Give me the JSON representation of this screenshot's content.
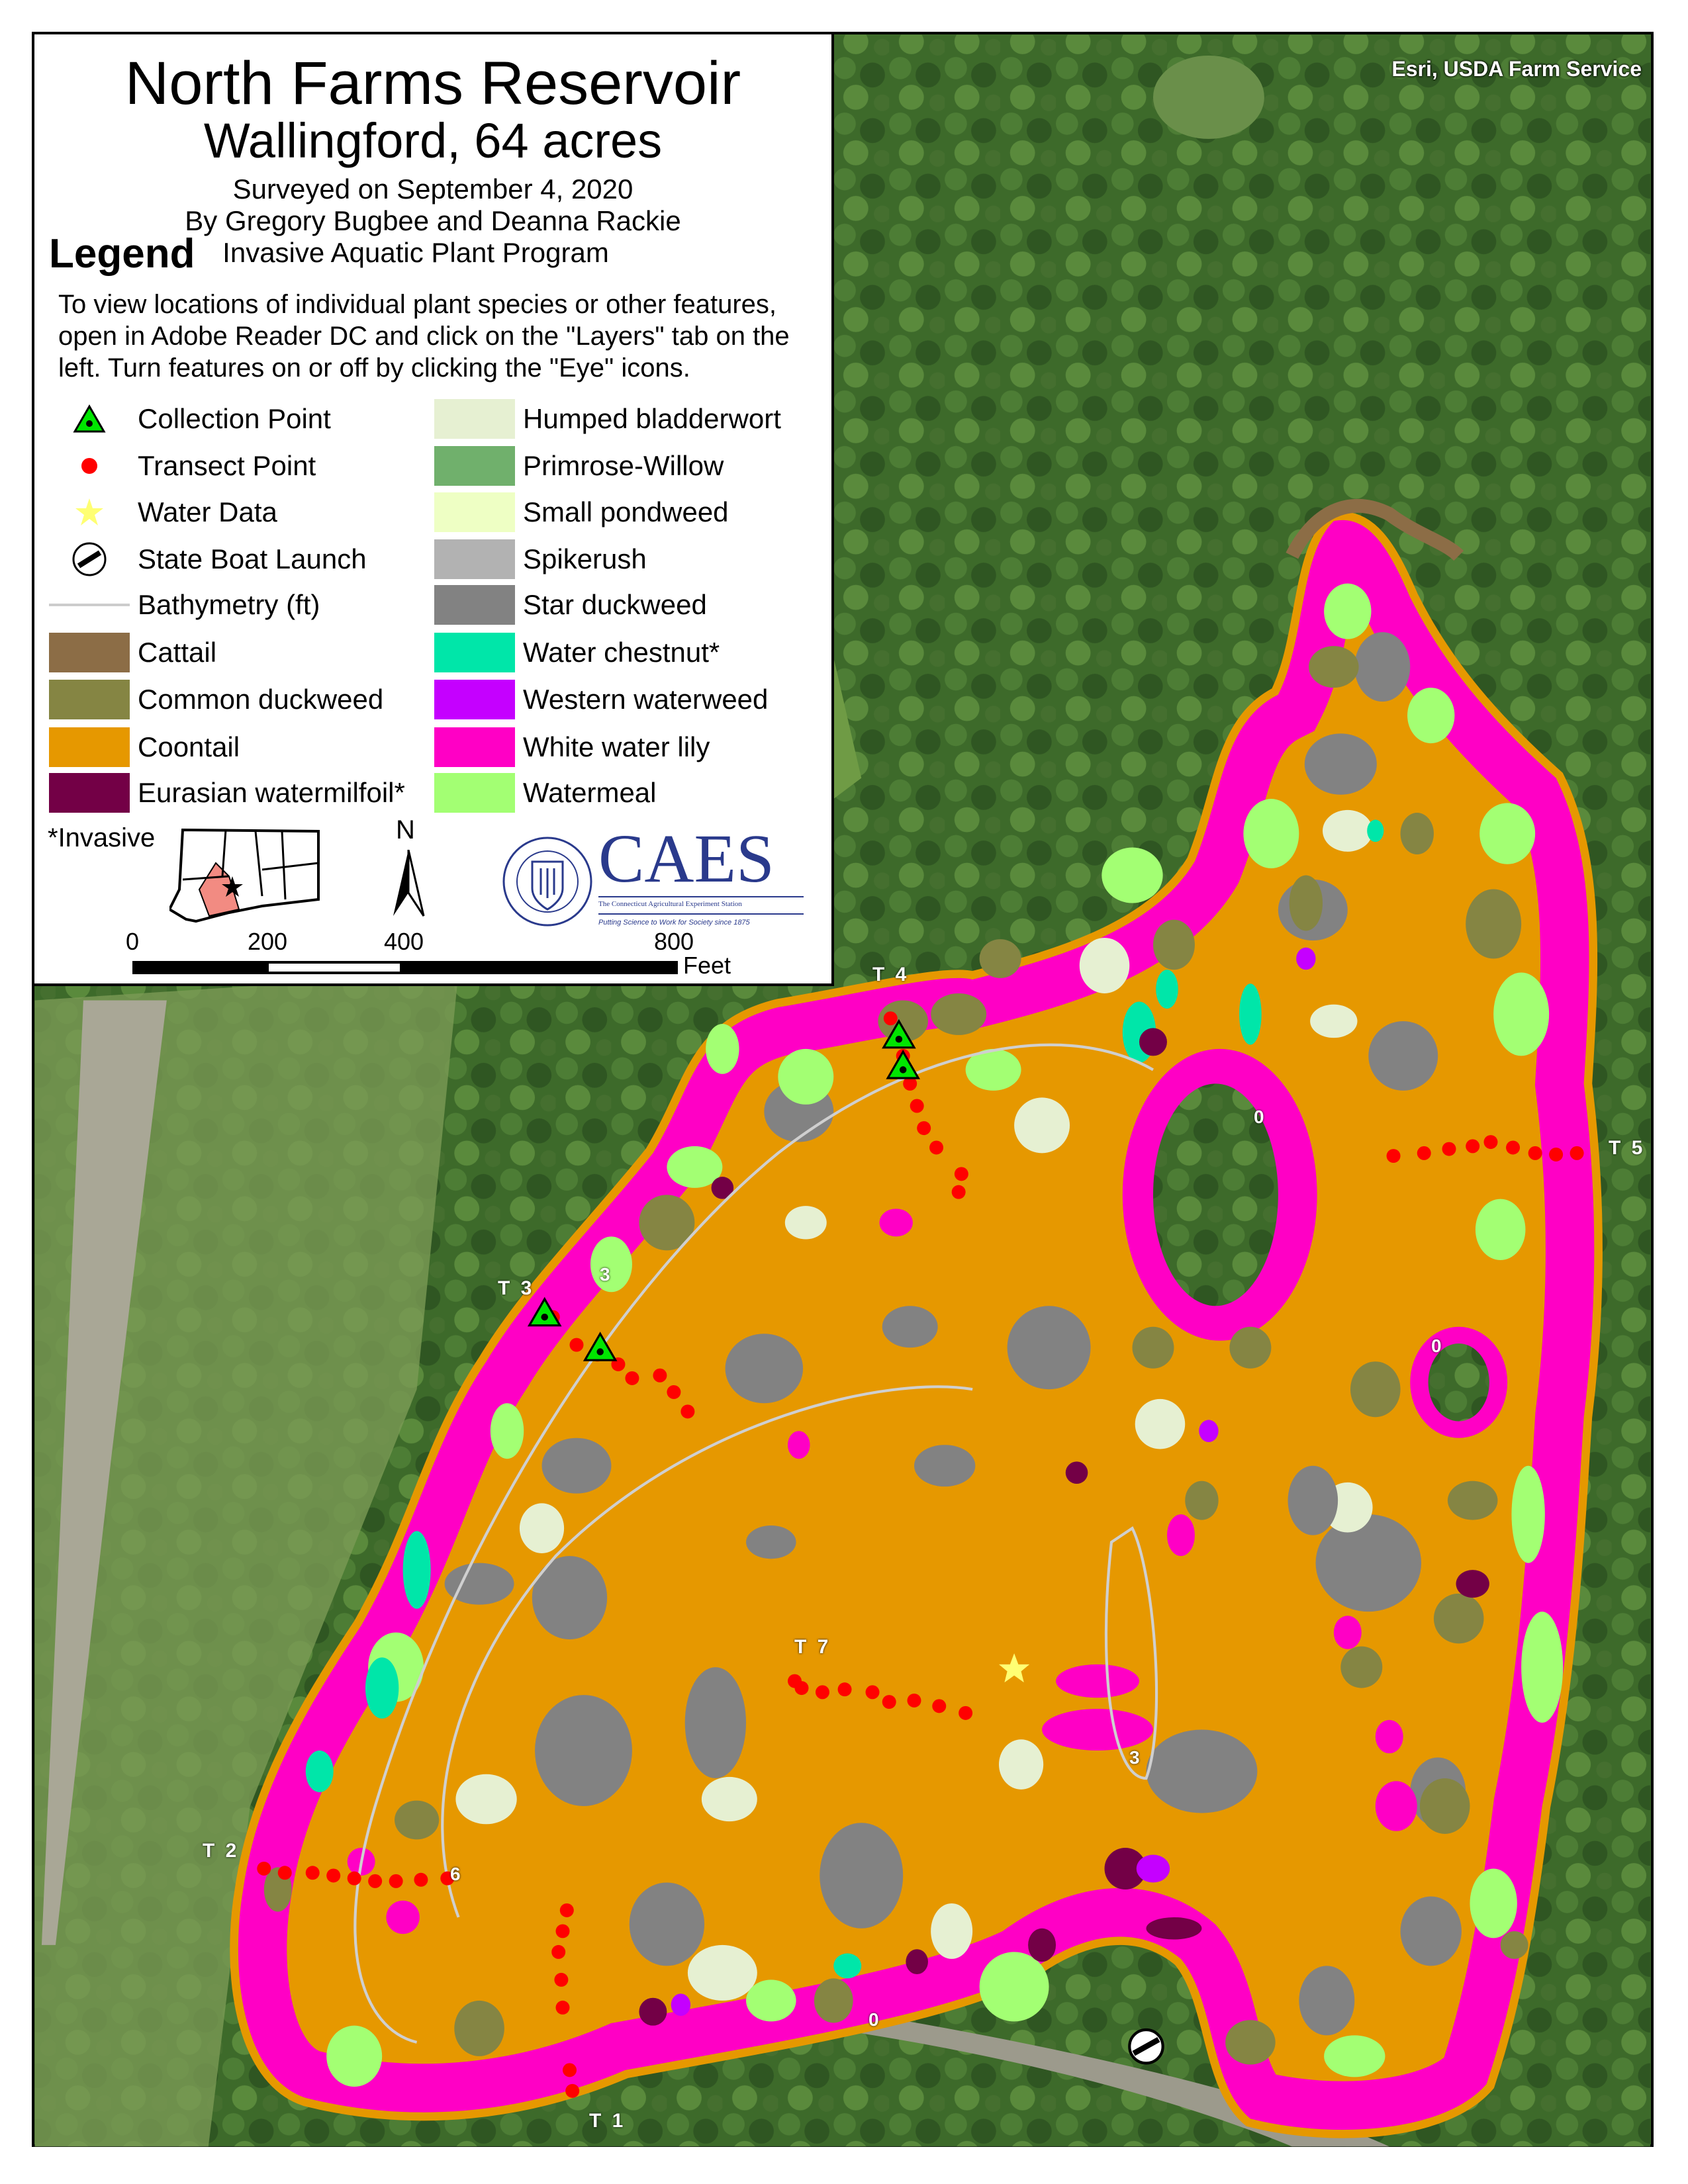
{
  "title": "North Farms Reservoir",
  "subtitle": "Wallingford, 64 acres",
  "survey_date": "Surveyed on September 4, 2020",
  "authors": "By Gregory Bugbee and Deanna Rackie",
  "program": "Invasive Aquatic Plant Program",
  "legend_title": "Legend",
  "instructions": "To view locations of individual plant species or other features, open in Adobe Reader DC and click on the \"Layers\" tab on the left. Turn features on or off by clicking the \"Eye\" icons.",
  "legend_left": [
    {
      "label": "Collection Point",
      "icon": "green-triangle-icon",
      "color": "#00e600"
    },
    {
      "label": "Transect Point",
      "icon": "red-dot-icon",
      "color": "#ff0000"
    },
    {
      "label": "Water Data",
      "icon": "yellow-star-icon",
      "color": "#ffff73"
    },
    {
      "label": "State Boat Launch",
      "icon": "boat-launch-icon",
      "color": "#000000"
    },
    {
      "label": "Bathymetry (ft)",
      "icon": "contour-line-icon",
      "color": "#cccccc"
    },
    {
      "label": "Cattail",
      "color": "#8c6d46"
    },
    {
      "label": "Common duckweed",
      "color": "#858543"
    },
    {
      "label": "Coontail",
      "color": "#e69800"
    },
    {
      "label": "Eurasian watermilfoil*",
      "color": "#730046"
    }
  ],
  "legend_right": [
    {
      "label": "Humped bladderwort",
      "color": "#e6f0d2"
    },
    {
      "label": "Primrose-Willow",
      "color": "#70b06c"
    },
    {
      "label": "Small pondweed",
      "color": "#eeffc4"
    },
    {
      "label": "Spikerush",
      "color": "#b2b2b2"
    },
    {
      "label": "Star duckweed",
      "color": "#828282"
    },
    {
      "label": "Water chestnut*",
      "color": "#00e6a9"
    },
    {
      "label": "Western waterweed",
      "color": "#c500ff"
    },
    {
      "label": "White water lily",
      "color": "#ff00c5"
    },
    {
      "label": "Watermeal",
      "color": "#a3ff73"
    }
  ],
  "invasive_note": "*Invasive",
  "north_label": "N",
  "scale_bar": {
    "ticks": [
      "0",
      "200",
      "400",
      "800"
    ],
    "unit": "Feet"
  },
  "logo": {
    "name": "CAES",
    "line1": "The Connecticut Agricultural Experiment Station",
    "line2": "Putting Science to Work for Society since 1875",
    "seal_text": "THE CONNECTICUT AGRICULTURAL EXPERIMENT STATION"
  },
  "attribution": "Esri, USDA Farm Service",
  "transects": [
    "T 1",
    "T 2",
    "T 3",
    "T 4",
    "T 5",
    "T 7"
  ],
  "contour_labels": [
    "0",
    "3",
    "6"
  ]
}
